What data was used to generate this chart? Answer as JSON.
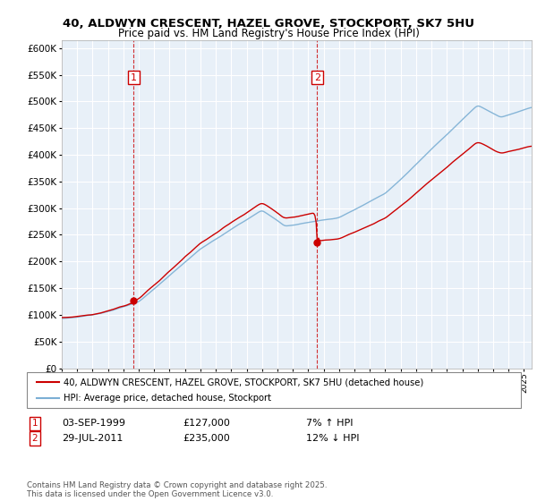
{
  "title": "40, ALDWYN CRESCENT, HAZEL GROVE, STOCKPORT, SK7 5HU",
  "subtitle": "Price paid vs. HM Land Registry's House Price Index (HPI)",
  "line1_color": "#cc0000",
  "line2_color": "#7bafd4",
  "vline_color": "#cc0000",
  "legend_label1": "40, ALDWYN CRESCENT, HAZEL GROVE, STOCKPORT, SK7 5HU (detached house)",
  "legend_label2": "HPI: Average price, detached house, Stockport",
  "ann1_num": "1",
  "ann2_num": "2",
  "ann1_date": "03-SEP-1999",
  "ann1_price": "£127,000",
  "ann1_hpi": "7% ↑ HPI",
  "ann2_date": "29-JUL-2011",
  "ann2_price": "£235,000",
  "ann2_hpi": "12% ↓ HPI",
  "footer": "Contains HM Land Registry data © Crown copyright and database right 2025.\nThis data is licensed under the Open Government Licence v3.0.",
  "background_color": "#ffffff",
  "plot_bg_color": "#e8f0f8",
  "grid_color": "#ffffff",
  "sale1_year": 1999.67,
  "sale2_year": 2011.58,
  "sale1_price": 127000,
  "sale2_price": 235000
}
